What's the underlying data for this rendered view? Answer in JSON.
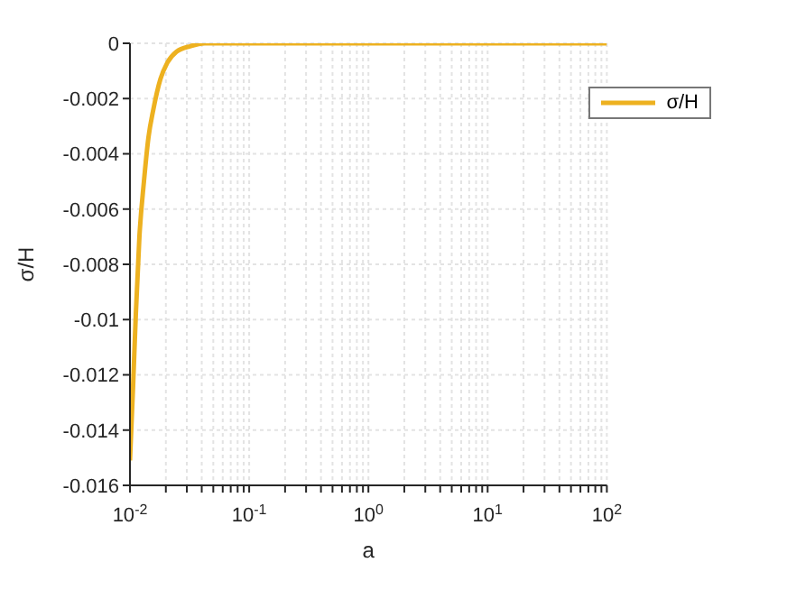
{
  "chart_data": {
    "type": "line",
    "xlabel": "a",
    "ylabel": "σ/H",
    "log": "x",
    "grid": true,
    "legend": "top right",
    "marker": "none",
    "line_style": "solid",
    "xlim": [
      0.01,
      100
    ],
    "ylim": [
      -0.016,
      0
    ],
    "xticks": [
      {
        "value": 0.01,
        "label": "10$^{-2}$"
      },
      {
        "value": 0.02,
        "label": null
      },
      {
        "value": 0.03,
        "label": null
      },
      {
        "value": 0.04,
        "label": null
      },
      {
        "value": 0.05,
        "label": null
      },
      {
        "value": 0.06,
        "label": null
      },
      {
        "value": 0.07,
        "label": null
      },
      {
        "value": 0.08,
        "label": null
      },
      {
        "value": 0.09,
        "label": null
      },
      {
        "value": 0.1,
        "label": "10$^{-1}$"
      },
      {
        "value": 0.2,
        "label": null
      },
      {
        "value": 0.3,
        "label": null
      },
      {
        "value": 0.4,
        "label": null
      },
      {
        "value": 0.5,
        "label": null
      },
      {
        "value": 0.6,
        "label": null
      },
      {
        "value": 0.7,
        "label": null
      },
      {
        "value": 0.8,
        "label": null
      },
      {
        "value": 0.9,
        "label": null
      },
      {
        "value": 1,
        "label": "10$^{0}$"
      },
      {
        "value": 2,
        "label": null
      },
      {
        "value": 3,
        "label": null
      },
      {
        "value": 4,
        "label": null
      },
      {
        "value": 5,
        "label": null
      },
      {
        "value": 6,
        "label": null
      },
      {
        "value": 7,
        "label": null
      },
      {
        "value": 8,
        "label": null
      },
      {
        "value": 9,
        "label": null
      },
      {
        "value": 10,
        "label": "10$^{1}$"
      },
      {
        "value": 20,
        "label": null
      },
      {
        "value": 30,
        "label": null
      },
      {
        "value": 40,
        "label": null
      },
      {
        "value": 50,
        "label": null
      },
      {
        "value": 60,
        "label": null
      },
      {
        "value": 70,
        "label": null
      },
      {
        "value": 80,
        "label": null
      },
      {
        "value": 90,
        "label": null
      },
      {
        "value": 100,
        "label": "10$^{2}$"
      }
    ],
    "yticks": [
      -0.016,
      -0.014,
      -0.012,
      -0.01,
      -0.008,
      -0.006,
      -0.004,
      -0.002,
      0
    ],
    "series": [
      {
        "name": "σ/H",
        "color": "#edb120",
        "x": [
          0.01,
          0.0106,
          0.0112,
          0.012,
          0.0131,
          0.0143,
          0.0157,
          0.018,
          0.0206,
          0.0246,
          0.0323,
          0.0424,
          0.06,
          0.1,
          1,
          10,
          100
        ],
        "values": [
          -0.0151,
          -0.0125,
          -0.0098,
          -0.007,
          -0.005,
          -0.0034,
          -0.0024,
          -0.0013,
          -0.0007,
          -0.0003,
          -0.0001,
          0,
          0,
          0,
          0,
          0,
          0
        ]
      }
    ]
  }
}
